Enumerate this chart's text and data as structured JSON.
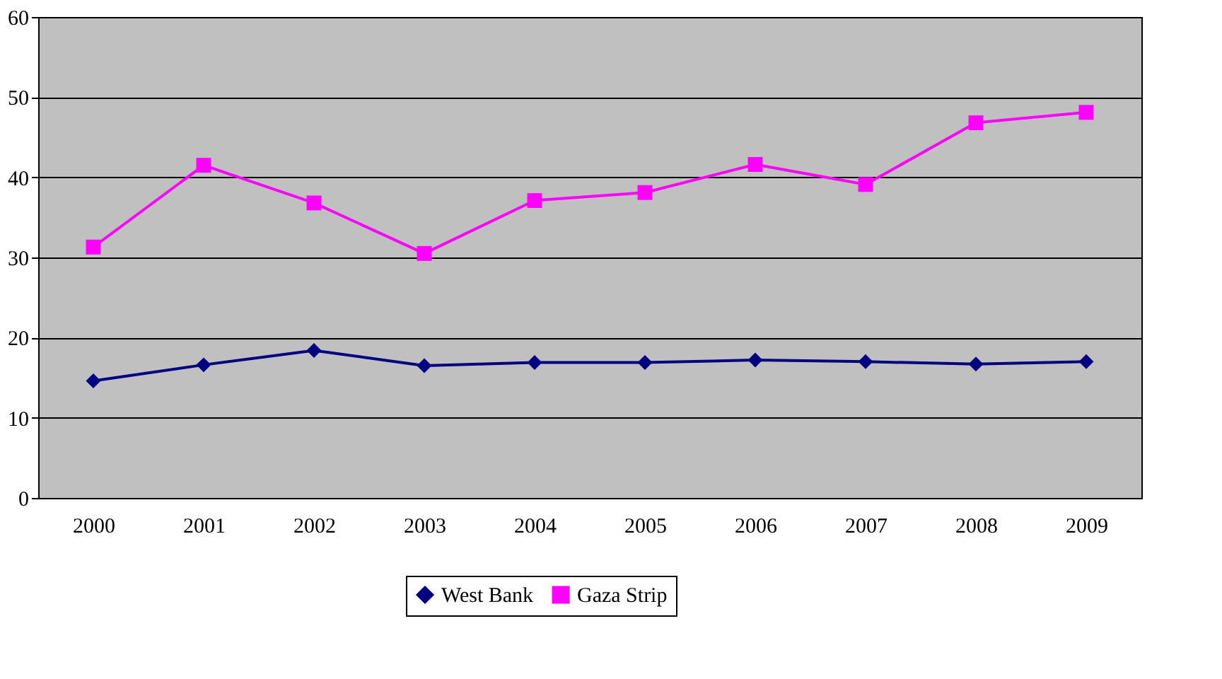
{
  "chart_data": {
    "type": "line",
    "categories": [
      "2000",
      "2001",
      "2002",
      "2003",
      "2004",
      "2005",
      "2006",
      "2007",
      "2008",
      "2009"
    ],
    "series": [
      {
        "name": "West Bank",
        "color": "#000080",
        "marker": "diamond",
        "values": [
          14.6,
          16.6,
          18.4,
          16.5,
          16.9,
          16.9,
          17.2,
          17.0,
          16.7,
          17.0
        ]
      },
      {
        "name": "Gaza Strip",
        "color": "#ff00ff",
        "marker": "square",
        "values": [
          31.3,
          41.5,
          36.8,
          30.5,
          37.1,
          38.1,
          41.6,
          39.1,
          46.8,
          48.1
        ]
      }
    ],
    "ylim": [
      0,
      60
    ],
    "yticks": [
      0,
      10,
      20,
      30,
      40,
      50,
      60
    ],
    "grid": "y",
    "legend": "bottom",
    "line_style": "solid"
  }
}
